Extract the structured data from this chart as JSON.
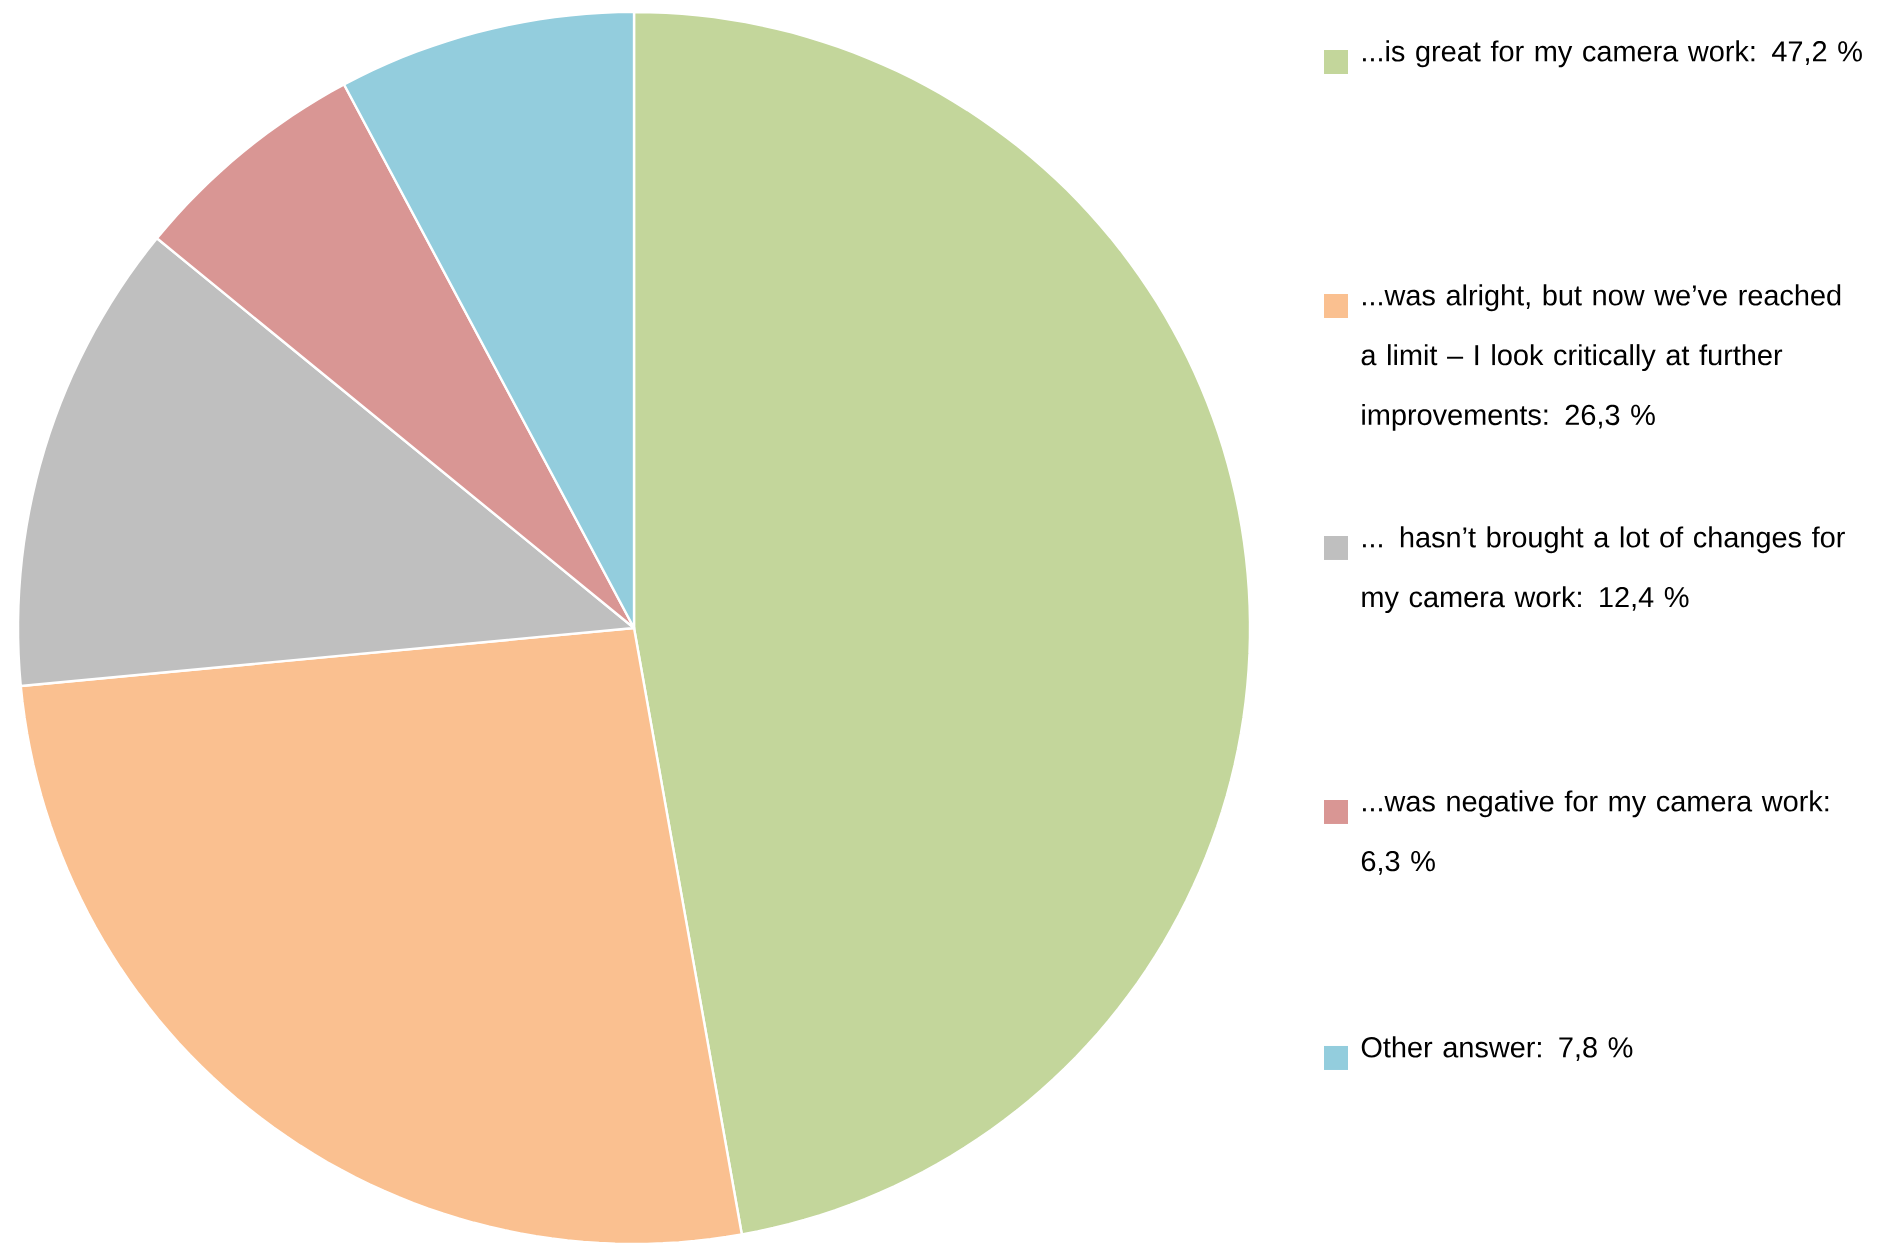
{
  "chart_data": {
    "type": "pie",
    "categories": [
      "...is great for my camera work: 47,2 %",
      "...was alright, but now we’ve reached a limit – I look critically at further improvements: 26,3 %",
      "... hasn’t brought a lot of changes for my camera work: 12,4 %",
      "...was negative for my camera work: 6,3 %",
      "Other answer: 7,8 %"
    ],
    "values": [
      47.2,
      26.3,
      12.4,
      6.3,
      7.8
    ],
    "colors": [
      "#c3d69b",
      "#fac090",
      "#bfbfbf",
      "#d99694",
      "#93cddd"
    ],
    "legend": "right"
  }
}
